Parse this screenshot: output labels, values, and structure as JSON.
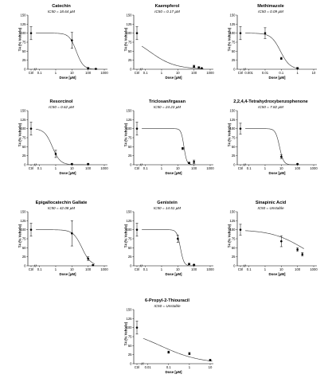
{
  "chart_data": [
    {
      "type": "line",
      "title": "Catechin",
      "subtitle": "IC50 = 18.64 µM",
      "xlabel": "Dose [µM]",
      "ylabel": "T4 (% Vehicle)",
      "xticks": [
        "Ctrl",
        "0.1",
        "1",
        "10",
        "100",
        "1000"
      ],
      "xlim": [
        0.03,
        1000
      ],
      "ylim": [
        0,
        150
      ],
      "yticks": [
        0,
        25,
        50,
        75,
        100,
        125,
        150
      ],
      "x": [
        0.03,
        10,
        100,
        300
      ],
      "y": [
        100,
        80,
        3,
        1
      ],
      "err": [
        18,
        22,
        2,
        1
      ],
      "fit": {
        "top": 100,
        "bottom": 0,
        "logIC50": 1.27,
        "hill": -2
      }
    },
    {
      "type": "line",
      "title": "Kaempferol",
      "subtitle": "IC50 = 0.17 µM",
      "xlabel": "Dose [µM]",
      "ylabel": "T4 (% Vehicle)",
      "xticks": [
        "Ctrl",
        "0.1",
        "1",
        "10",
        "100",
        "1000"
      ],
      "xlim": [
        0.03,
        1000
      ],
      "ylim": [
        0,
        150
      ],
      "yticks": [
        0,
        25,
        50,
        75,
        100,
        125,
        150
      ],
      "x": [
        0.03,
        100,
        200,
        300
      ],
      "y": [
        100,
        8,
        5,
        3
      ],
      "err": [
        18,
        3,
        2,
        1
      ],
      "fit": {
        "top": 100,
        "bottom": 0,
        "logIC50": -0.77,
        "hill": -0.55
      }
    },
    {
      "type": "line",
      "title": "Methimazole",
      "subtitle": "IC50 = 0.09 µM",
      "xlabel": "Dose [µM]",
      "ylabel": "T4 (% Vehicle)",
      "xticks": [
        "Ctrl",
        "0.001",
        "0.01",
        "0.1",
        "1",
        "10"
      ],
      "xlim": [
        0.0003,
        10
      ],
      "ylim": [
        0,
        150
      ],
      "yticks": [
        0,
        25,
        50,
        75,
        100,
        125,
        150
      ],
      "x": [
        0.0003,
        0.01,
        0.1,
        1
      ],
      "y": [
        100,
        100,
        30,
        3
      ],
      "err": [
        18,
        15,
        3,
        2
      ],
      "fit": {
        "top": 100,
        "bottom": 0,
        "logIC50": -1.05,
        "hill": -1.5
      }
    },
    {
      "type": "line",
      "title": "Resorcinol",
      "subtitle": "IC50 = 0.62 µM",
      "xlabel": "Dose [µM]",
      "ylabel": "T4 (% Vehicle)",
      "xticks": [
        "Ctrl",
        "0.1",
        "1",
        "10",
        "100",
        "1000"
      ],
      "xlim": [
        0.03,
        1000
      ],
      "ylim": [
        0,
        150
      ],
      "yticks": [
        0,
        25,
        50,
        75,
        100,
        125,
        150
      ],
      "x": [
        0.03,
        1,
        10,
        100
      ],
      "y": [
        100,
        30,
        2,
        2
      ],
      "err": [
        18,
        10,
        1,
        1
      ],
      "fit": {
        "top": 100,
        "bottom": 0,
        "logIC50": -0.21,
        "hill": -1.8
      }
    },
    {
      "type": "line",
      "title": "Triclosan/Irgasan",
      "subtitle": "IC50 = 24.23 µM",
      "xlabel": "Dose [µM]",
      "ylabel": "T4 (% Vehicle)",
      "xticks": [
        "Ctrl",
        "0.1",
        "1",
        "10",
        "100",
        "1000"
      ],
      "xlim": [
        0.03,
        1000
      ],
      "ylim": [
        0,
        150
      ],
      "yticks": [
        0,
        25,
        50,
        75,
        100,
        125,
        150
      ],
      "x": [
        0.03,
        20,
        50,
        100
      ],
      "y": [
        100,
        45,
        5,
        8
      ],
      "err": [
        18,
        3,
        2,
        5
      ],
      "fit": {
        "top": 100,
        "bottom": 0,
        "logIC50": 1.38,
        "hill": -5
      }
    },
    {
      "type": "line",
      "title": "2,2,4,4-Tetrahydroxybenzophenone",
      "subtitle": "IC50 = 7.82 µM",
      "xlabel": "Dose [µM]",
      "ylabel": "T4 (% Vehicle)",
      "xticks": [
        "Ctrl",
        "0.1",
        "1",
        "10",
        "100",
        "1000"
      ],
      "xlim": [
        0.03,
        1000
      ],
      "ylim": [
        0,
        150
      ],
      "yticks": [
        0,
        25,
        50,
        75,
        100,
        125,
        150
      ],
      "x": [
        0.03,
        10,
        100
      ],
      "y": [
        100,
        22,
        2
      ],
      "err": [
        15,
        5,
        1
      ],
      "fit": {
        "top": 100,
        "bottom": 0,
        "logIC50": 0.89,
        "hill": -3.5
      }
    },
    {
      "type": "line",
      "title": "Epigallocatechin Gallate",
      "subtitle": "IC50 = 42.08 µM",
      "xlabel": "Dose [µM]",
      "ylabel": "T4 (% Vehicle)",
      "xticks": [
        "Ctrl",
        "0.1",
        "1",
        "10",
        "100",
        "1000"
      ],
      "xlim": [
        0.03,
        1000
      ],
      "ylim": [
        0,
        150
      ],
      "yticks": [
        0,
        25,
        50,
        75,
        100,
        125,
        150
      ],
      "x": [
        0.03,
        10,
        100,
        200
      ],
      "y": [
        100,
        90,
        20,
        2
      ],
      "err": [
        18,
        35,
        5,
        1
      ],
      "fit": {
        "top": 100,
        "bottom": 0,
        "logIC50": 1.62,
        "hill": -1.6
      }
    },
    {
      "type": "line",
      "title": "Genistein",
      "subtitle": "IC50 = 14.51 µM",
      "xlabel": "Dose [µM]",
      "ylabel": "T4 (% Vehicle)",
      "xticks": [
        "Ctrl",
        "0.1",
        "1",
        "10",
        "100",
        "1000"
      ],
      "xlim": [
        0.03,
        1000
      ],
      "ylim": [
        0,
        150
      ],
      "yticks": [
        0,
        25,
        50,
        75,
        100,
        125,
        150
      ],
      "x": [
        0.03,
        10,
        50,
        100
      ],
      "y": [
        100,
        75,
        5,
        3
      ],
      "err": [
        18,
        10,
        2,
        1
      ],
      "fit": {
        "top": 100,
        "bottom": 0,
        "logIC50": 1.16,
        "hill": -4
      }
    },
    {
      "type": "line",
      "title": "Sinapinic Acid",
      "subtitle": "IC50 = Unstable",
      "xlabel": "Dose [µM]",
      "ylabel": "T4 (% Vehicle)",
      "xticks": [
        "Ctrl",
        "0.1",
        "1",
        "10",
        "100",
        "1000"
      ],
      "xlim": [
        0.03,
        1000
      ],
      "ylim": [
        0,
        150
      ],
      "yticks": [
        0,
        25,
        50,
        75,
        100,
        125,
        150
      ],
      "x": [
        0.03,
        10,
        100,
        200
      ],
      "y": [
        100,
        68,
        45,
        32
      ],
      "err": [
        15,
        15,
        5,
        5
      ],
      "fit": {
        "top": 100,
        "bottom": 0,
        "logIC50": 2.3,
        "hill": -0.45
      }
    },
    {
      "type": "line",
      "title": "6-Propyl-2-Thiouracil",
      "subtitle": "IC50 = Unstable",
      "xlabel": "Dose [µM]",
      "ylabel": "T4 (% Vehicle)",
      "xticks": [
        "Ctrl",
        "0.01",
        "0.1",
        "1",
        "10"
      ],
      "xlim": [
        0.003,
        10
      ],
      "ylim": [
        0,
        150
      ],
      "yticks": [
        0,
        25,
        50,
        75,
        100,
        125,
        150
      ],
      "x": [
        0.003,
        0.1,
        1,
        10
      ],
      "y": [
        100,
        32,
        28,
        10
      ],
      "err": [
        18,
        3,
        3,
        2
      ],
      "fit": {
        "top": 100,
        "bottom": 0,
        "logIC50": -1.4,
        "hill": -0.45
      }
    }
  ]
}
